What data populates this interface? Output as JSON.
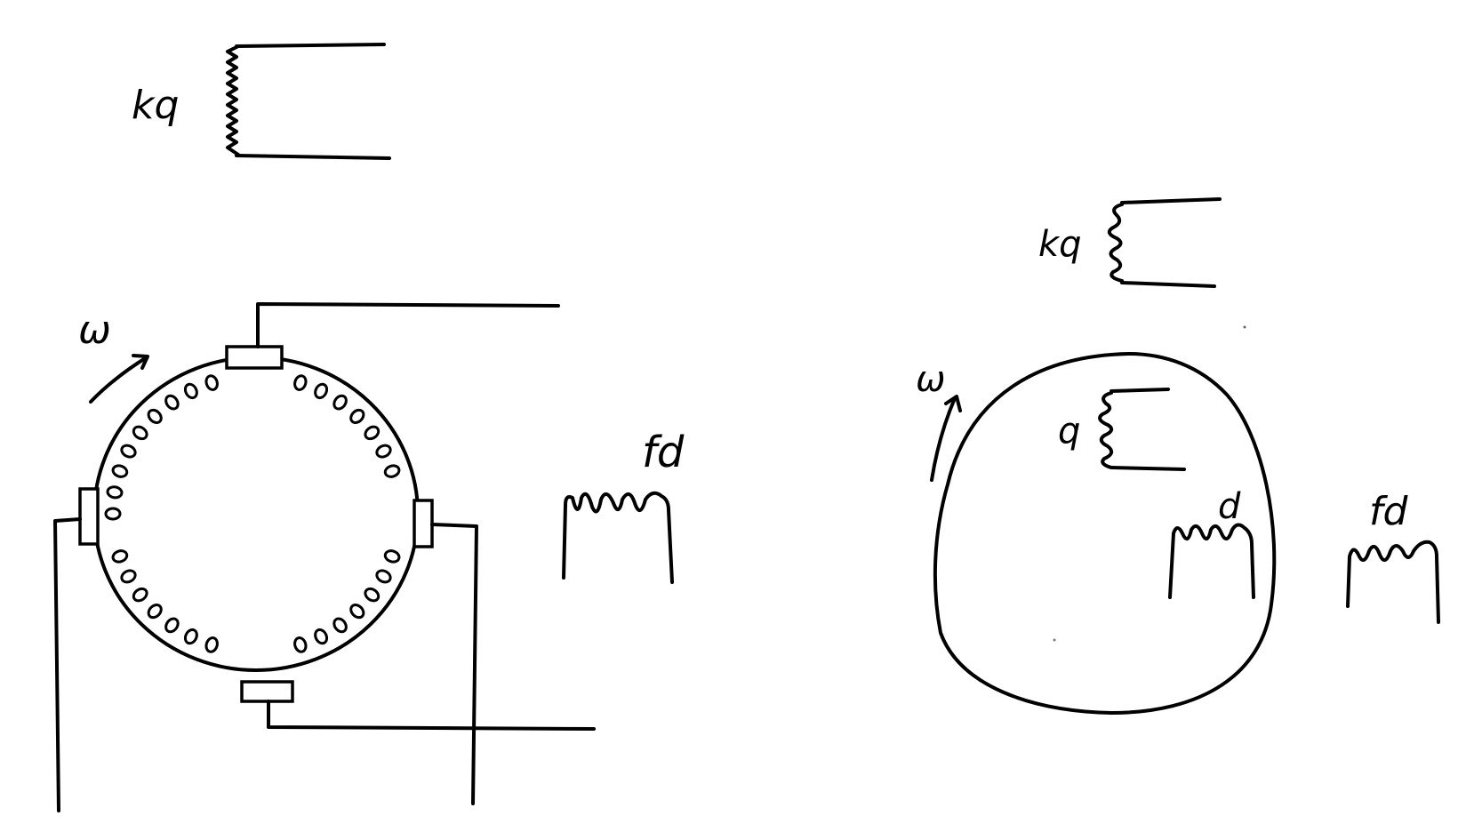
{
  "left_diagram": {
    "kq_label": "kq",
    "omega_label": "ω",
    "fd_label": "fd"
  },
  "right_diagram": {
    "kq_label": "kq",
    "omega_label": "ω",
    "q_label": "q",
    "d_label": "d",
    "fd_label": "fd"
  },
  "colors": {
    "ink": "#000000",
    "background": "#ffffff"
  }
}
